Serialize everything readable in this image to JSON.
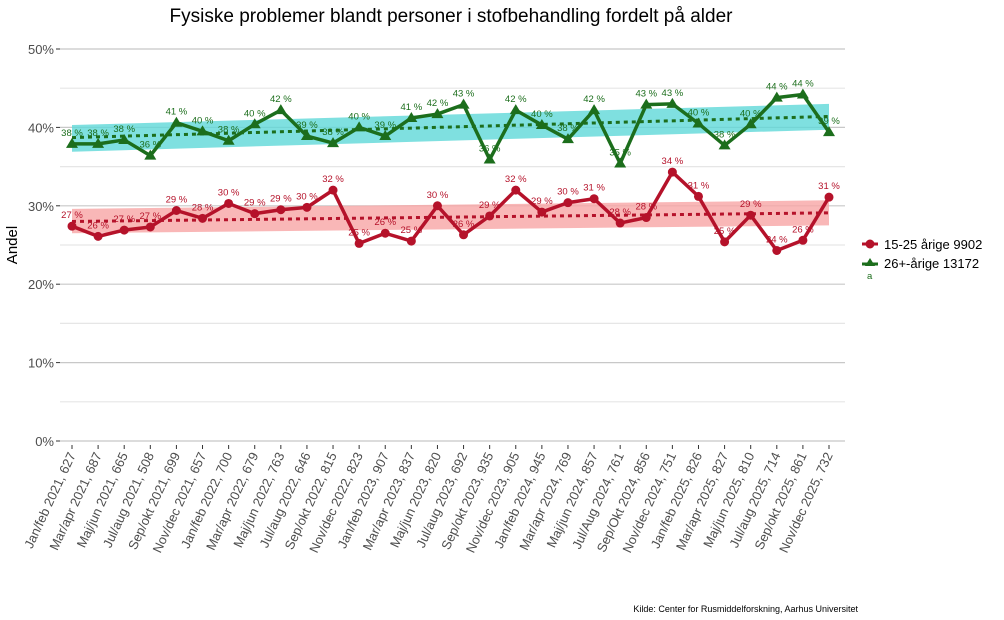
{
  "chart_data": {
    "type": "line",
    "title": "Fysiske problemer blandt personer i stofbehandling fordelt på alder",
    "xlabel": "",
    "ylabel": "Andel",
    "ylim": [
      0,
      50
    ],
    "yticks": [
      "0%",
      "10%",
      "20%",
      "30%",
      "40%",
      "50%"
    ],
    "grid": true,
    "legend_position": "right",
    "caption": "Kilde: Center for Rusmiddelforskning, Aarhus Universitet",
    "categories": [
      "Jan/feb 2021, 627",
      "Mar/apr 2021, 687",
      "Maj/jun 2021, 665",
      "Jul/aug 2021, 508",
      "Sep/okt 2021, 699",
      "Nov/dec 2021, 657",
      "Jan/feb 2022, 700",
      "Mar/apr 2022, 679",
      "Maj/jun 2022, 763",
      "Jul/aug 2022, 646",
      "Sep/okt 2022, 815",
      "Nov/dec 2022, 823",
      "Jan/feb 2023, 907",
      "Mar/apr 2023, 837",
      "Maj/jun 2023, 820",
      "Jul/aug 2023, 692",
      "Sep/okt 2023, 935",
      "Nov/dec 2023, 905",
      "Jan/feb 2024, 945",
      "Mar/apr 2024, 769",
      "Maj/jun 2024, 857",
      "Jul/Aug 2024, 761",
      "Sep/Okt 2024, 856",
      "Nov/dec 2024, 751",
      "Jan/feb 2025, 826",
      "Mar/apr 2025, 827",
      "Maj/jun 2025, 810",
      "Jul/aug 2025, 714",
      "Sep/okt 2025, 861",
      "Nov/dec 2025, 732"
    ],
    "series": [
      {
        "name": "15-25 årige 9902",
        "color": "#b5122a",
        "band_color": "#f8a5a5",
        "marker": "circle",
        "values": [
          27.4,
          26.1,
          26.9,
          27.3,
          29.4,
          28.4,
          30.3,
          29.0,
          29.5,
          29.8,
          32.0,
          25.2,
          26.5,
          25.5,
          30.0,
          26.3,
          28.7,
          32.0,
          29.2,
          30.4,
          30.9,
          27.8,
          28.5,
          34.3,
          31.2,
          25.4,
          28.8,
          24.3,
          25.6,
          31.1
        ],
        "labels": [
          "27 %",
          "26 %",
          "27 %",
          "27 %",
          "29 %",
          "28 %",
          "30 %",
          "29 %",
          "29 %",
          "30 %",
          "32 %",
          "25 %",
          "26 %",
          "25 %",
          "30 %",
          "26 %",
          "29 %",
          "32 %",
          "29 %",
          "30 %",
          "31 %",
          "28 %",
          "28 %",
          "34 %",
          "31 %",
          "25 %",
          "29 %",
          "24 %",
          "26 %",
          "31 %"
        ],
        "trend": [
          28.0,
          29.1
        ],
        "band_low": [
          26.5,
          27.5
        ],
        "band_high": [
          29.6,
          30.7
        ]
      },
      {
        "name": "26+-årige 13172",
        "color": "#1c6e1c",
        "band_color": "#5fd8d8",
        "marker": "triangle",
        "values": [
          37.9,
          37.9,
          38.4,
          36.4,
          40.6,
          39.5,
          38.3,
          40.4,
          42.2,
          38.9,
          38.0,
          40.0,
          38.9,
          41.2,
          41.7,
          42.9,
          35.9,
          42.2,
          40.3,
          38.5,
          42.2,
          35.4,
          42.9,
          43.0,
          40.5,
          37.7,
          40.4,
          43.8,
          44.2,
          39.4
        ],
        "labels": [
          "38 %",
          "38 %",
          "38 %",
          "36 %",
          "41 %",
          "40 %",
          "38 %",
          "40 %",
          "42 %",
          "39 %",
          "38 %",
          "40 %",
          "39 %",
          "41 %",
          "42 %",
          "43 %",
          "36 %",
          "42 %",
          "40 %",
          "38 %",
          "42 %",
          "35 %",
          "43 %",
          "43 %",
          "40 %",
          "38 %",
          "40 %",
          "44 %",
          "44 %",
          "39 %"
        ],
        "trend": [
          38.7,
          41.4
        ],
        "band_low": [
          36.9,
          39.7
        ],
        "band_high": [
          40.3,
          43.0
        ]
      }
    ],
    "legend": [
      {
        "label": "15-25 årige 9902",
        "color": "#b5122a",
        "marker": "circle"
      },
      {
        "label": "26+-årige 13172",
        "color": "#1c6e1c",
        "marker": "triangle"
      }
    ],
    "legend_subnote": "a"
  }
}
